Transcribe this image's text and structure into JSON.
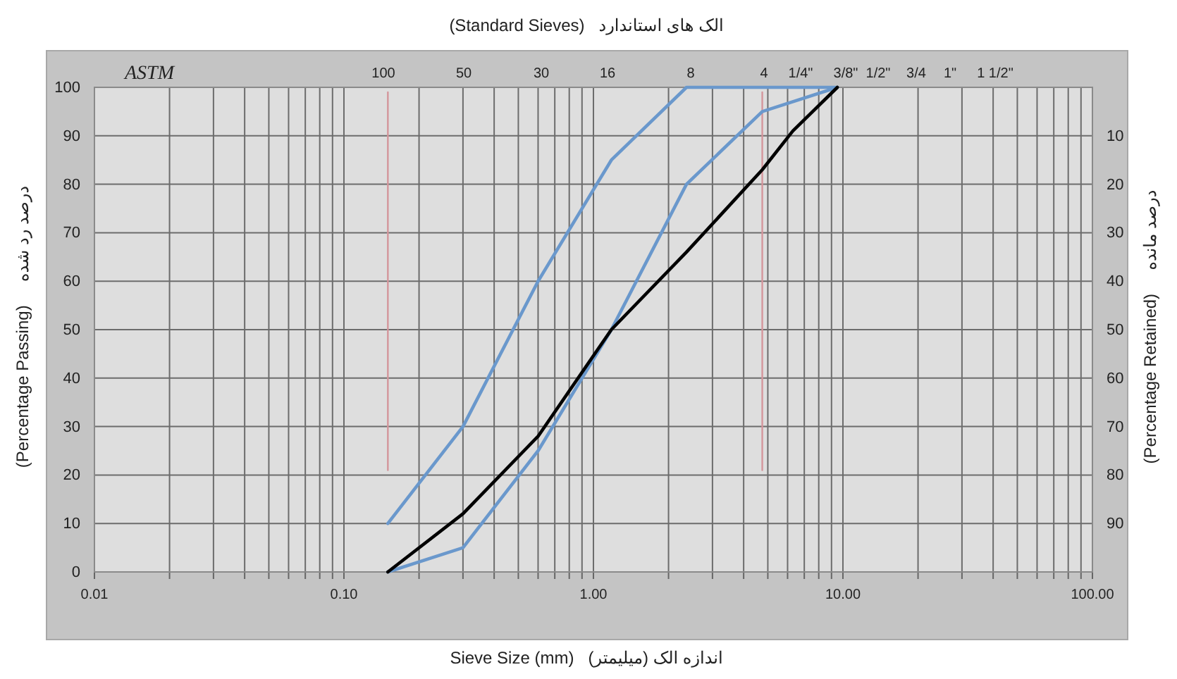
{
  "chart_data": {
    "type": "line",
    "title": "(Standard Sieves)   الک های استاندارد",
    "xlabel": "Sieve Size (mm)   اندازه الک (میلیمتر)",
    "ylabel": "(Percentage Passing)     درصد رد شده",
    "y2label": "(Percentage Retained)     درصد مانده",
    "annotations": [
      "ASTM",
      "100",
      "50",
      "30",
      "16",
      "8",
      "4",
      "1/4\"",
      "3/8\"",
      "1/2\"",
      "3/4",
      "1\"",
      "1 1/2\""
    ],
    "log": "x",
    "xlim": [
      0.01,
      100
    ],
    "xticks": [
      0.01,
      {
        "value": 0.02,
        "label": null
      },
      {
        "value": 0.03,
        "label": null
      },
      {
        "value": 0.04,
        "label": null
      },
      {
        "value": 0.05,
        "label": null
      },
      {
        "value": 0.06,
        "label": null
      },
      {
        "value": 0.07,
        "label": null
      },
      {
        "value": 0.08,
        "label": null
      },
      {
        "value": 0.09,
        "label": null
      },
      {
        "value": 0.1,
        "label": "0.10"
      },
      {
        "value": 0.2,
        "label": null
      },
      {
        "value": 0.3,
        "label": null
      },
      {
        "value": 0.4,
        "label": null
      },
      {
        "value": 0.5,
        "label": null
      },
      {
        "value": 0.6,
        "label": null
      },
      {
        "value": 0.7,
        "label": null
      },
      {
        "value": 0.8,
        "label": null
      },
      {
        "value": 0.9,
        "label": null
      },
      {
        "value": 1,
        "label": "1.00"
      },
      {
        "value": 2,
        "label": null
      },
      {
        "value": 3,
        "label": null
      },
      {
        "value": 4,
        "label": null
      },
      {
        "value": 5,
        "label": null
      },
      {
        "value": 6,
        "label": null
      },
      {
        "value": 7,
        "label": null
      },
      {
        "value": 8,
        "label": null
      },
      {
        "value": 9,
        "label": null
      },
      {
        "value": 10,
        "label": "10.00"
      },
      {
        "value": 20,
        "label": null
      },
      {
        "value": 30,
        "label": null
      },
      {
        "value": 40,
        "label": null
      },
      {
        "value": 50,
        "label": null
      },
      {
        "value": 60,
        "label": null
      },
      {
        "value": 70,
        "label": null
      },
      {
        "value": 80,
        "label": null
      },
      {
        "value": 90,
        "label": null
      },
      {
        "value": 100,
        "label": "100.00"
      }
    ],
    "ylim": [
      0,
      100
    ],
    "yticks": [
      0,
      10,
      20,
      30,
      40,
      50,
      60,
      70,
      80,
      90,
      100
    ],
    "y2lim": [
      100,
      0
    ],
    "y2ticks": [
      10,
      20,
      30,
      40,
      50,
      60,
      70,
      80,
      90
    ],
    "grid": true,
    "series": [
      {
        "color": "#d4959b",
        "x": [
          0.15,
          0.15
        ],
        "values": [
          21,
          99
        ]
      },
      {
        "color": "#d4959b",
        "x": [
          4.75,
          4.75
        ],
        "values": [
          21,
          99
        ]
      },
      {
        "color": "#6a98cc",
        "x": [
          0.15,
          0.3,
          0.6,
          1.18,
          2.36,
          4.75,
          9.5
        ],
        "values": [
          10,
          30,
          60,
          85,
          100,
          100,
          100
        ]
      },
      {
        "color": "#6a98cc",
        "x": [
          0.15,
          0.3,
          0.6,
          1.18,
          2.36,
          4.75,
          9.5
        ],
        "values": [
          0,
          5,
          25,
          50,
          80,
          95,
          100
        ]
      },
      {
        "color": "#000000",
        "x": [
          0.15,
          0.3,
          0.6,
          1.18,
          2.36,
          4.75,
          6.3,
          9.5
        ],
        "values": [
          0,
          12,
          28,
          50,
          66,
          83,
          91,
          100
        ]
      }
    ]
  }
}
